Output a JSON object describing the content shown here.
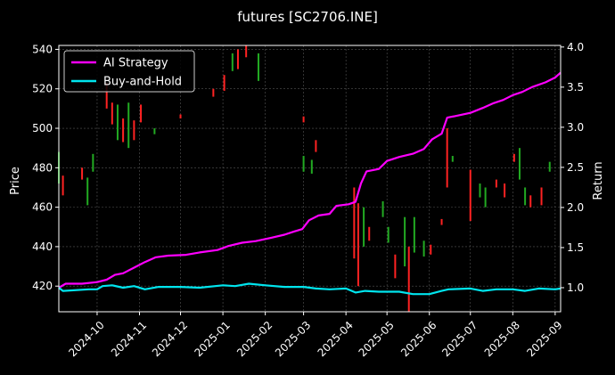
{
  "chart_data": {
    "type": "line",
    "title": "futures [SC2706.INE]",
    "xlabel": "",
    "ylabel": "Price",
    "y2label": "Return",
    "x_range": [
      "2024-09-03",
      "2025-09-05"
    ],
    "ylim": [
      407,
      542
    ],
    "y2lim": [
      0.7,
      4.02
    ],
    "yticks": [
      420,
      440,
      460,
      480,
      500,
      520,
      540
    ],
    "y2ticks": [
      "1.0",
      "1.5",
      "2.0",
      "2.5",
      "3.0",
      "3.5",
      "4.0"
    ],
    "xticks": [
      "2024-10",
      "2024-11",
      "2024-12",
      "2025-01",
      "2025-02",
      "2025-03",
      "2025-04",
      "2025-05",
      "2025-06",
      "2025-07",
      "2025-08",
      "2025-09"
    ],
    "grid": true,
    "legend_position": "top-left",
    "colors": {
      "up": "#22aa22",
      "down": "#ff2222",
      "strategy": "#ff00ff",
      "buyhold": "#00e5ee",
      "grid": "#555555"
    },
    "series": [
      {
        "name": "AI Strategy",
        "axis": "right",
        "points": [
          [
            "2024-09-03",
            1.0
          ],
          [
            "2024-09-08",
            1.05
          ],
          [
            "2024-09-20",
            1.05
          ],
          [
            "2024-10-01",
            1.07
          ],
          [
            "2024-10-08",
            1.1
          ],
          [
            "2024-10-14",
            1.16
          ],
          [
            "2024-10-20",
            1.18
          ],
          [
            "2024-10-28",
            1.25
          ],
          [
            "2024-11-05",
            1.32
          ],
          [
            "2024-11-13",
            1.38
          ],
          [
            "2024-11-22",
            1.4
          ],
          [
            "2024-12-05",
            1.41
          ],
          [
            "2024-12-15",
            1.44
          ],
          [
            "2024-12-28",
            1.47
          ],
          [
            "2025-01-05",
            1.52
          ],
          [
            "2025-01-15",
            1.56
          ],
          [
            "2025-01-25",
            1.58
          ],
          [
            "2025-02-05",
            1.62
          ],
          [
            "2025-02-15",
            1.66
          ],
          [
            "2025-02-22",
            1.7
          ],
          [
            "2025-02-28",
            1.73
          ],
          [
            "2025-03-05",
            1.84
          ],
          [
            "2025-03-12",
            1.9
          ],
          [
            "2025-03-20",
            1.92
          ],
          [
            "2025-03-25",
            2.02
          ],
          [
            "2025-04-03",
            2.04
          ],
          [
            "2025-04-08",
            2.07
          ],
          [
            "2025-04-12",
            2.3
          ],
          [
            "2025-04-16",
            2.45
          ],
          [
            "2025-04-25",
            2.48
          ],
          [
            "2025-05-01",
            2.58
          ],
          [
            "2025-05-10",
            2.63
          ],
          [
            "2025-05-20",
            2.67
          ],
          [
            "2025-05-28",
            2.73
          ],
          [
            "2025-06-03",
            2.85
          ],
          [
            "2025-06-10",
            2.92
          ],
          [
            "2025-06-14",
            3.12
          ],
          [
            "2025-06-20",
            3.14
          ],
          [
            "2025-07-01",
            3.18
          ],
          [
            "2025-07-10",
            3.24
          ],
          [
            "2025-07-18",
            3.3
          ],
          [
            "2025-07-25",
            3.34
          ],
          [
            "2025-08-01",
            3.4
          ],
          [
            "2025-08-08",
            3.44
          ],
          [
            "2025-08-15",
            3.5
          ],
          [
            "2025-08-25",
            3.56
          ],
          [
            "2025-09-01",
            3.62
          ],
          [
            "2025-09-05",
            3.68
          ]
        ]
      },
      {
        "name": "Buy-and-Hold",
        "axis": "right",
        "points": [
          [
            "2024-09-03",
            1.0
          ],
          [
            "2024-09-06",
            0.96
          ],
          [
            "2024-09-25",
            0.98
          ],
          [
            "2024-10-01",
            0.98
          ],
          [
            "2024-10-05",
            1.02
          ],
          [
            "2024-10-12",
            1.03
          ],
          [
            "2024-10-20",
            1.0
          ],
          [
            "2024-10-28",
            1.02
          ],
          [
            "2024-11-05",
            0.98
          ],
          [
            "2024-11-15",
            1.01
          ],
          [
            "2024-12-01",
            1.01
          ],
          [
            "2024-12-15",
            1.0
          ],
          [
            "2025-01-01",
            1.03
          ],
          [
            "2025-01-10",
            1.02
          ],
          [
            "2025-01-20",
            1.05
          ],
          [
            "2025-02-01",
            1.03
          ],
          [
            "2025-02-15",
            1.01
          ],
          [
            "2025-03-01",
            1.01
          ],
          [
            "2025-03-10",
            0.99
          ],
          [
            "2025-03-20",
            0.98
          ],
          [
            "2025-04-01",
            0.99
          ],
          [
            "2025-04-08",
            0.94
          ],
          [
            "2025-04-15",
            0.96
          ],
          [
            "2025-04-25",
            0.95
          ],
          [
            "2025-05-10",
            0.95
          ],
          [
            "2025-05-20",
            0.92
          ],
          [
            "2025-06-01",
            0.92
          ],
          [
            "2025-06-10",
            0.96
          ],
          [
            "2025-06-15",
            0.98
          ],
          [
            "2025-07-01",
            0.99
          ],
          [
            "2025-07-10",
            0.96
          ],
          [
            "2025-07-20",
            0.98
          ],
          [
            "2025-08-01",
            0.98
          ],
          [
            "2025-08-10",
            0.96
          ],
          [
            "2025-08-20",
            0.99
          ],
          [
            "2025-09-01",
            0.98
          ],
          [
            "2025-09-05",
            0.99
          ]
        ]
      }
    ],
    "candles": [
      {
        "date": "2024-09-03",
        "low": 472,
        "high": 488,
        "dir": "up"
      },
      {
        "date": "2024-09-06",
        "low": 466,
        "high": 476,
        "dir": "down"
      },
      {
        "date": "2024-09-20",
        "low": 474,
        "high": 480,
        "dir": "down"
      },
      {
        "date": "2024-09-24",
        "low": 461,
        "high": 475,
        "dir": "up"
      },
      {
        "date": "2024-09-28",
        "low": 478,
        "high": 487,
        "dir": "up"
      },
      {
        "date": "2024-10-08",
        "low": 510,
        "high": 523,
        "dir": "down"
      },
      {
        "date": "2024-10-12",
        "low": 502,
        "high": 513,
        "dir": "down"
      },
      {
        "date": "2024-10-16",
        "low": 494,
        "high": 512,
        "dir": "up"
      },
      {
        "date": "2024-10-20",
        "low": 493,
        "high": 505,
        "dir": "down"
      },
      {
        "date": "2024-10-24",
        "low": 490,
        "high": 513,
        "dir": "up"
      },
      {
        "date": "2024-10-28",
        "low": 494,
        "high": 504,
        "dir": "down"
      },
      {
        "date": "2024-11-02",
        "low": 503,
        "high": 512,
        "dir": "down"
      },
      {
        "date": "2024-11-12",
        "low": 497,
        "high": 500,
        "dir": "up"
      },
      {
        "date": "2024-12-01",
        "low": 505,
        "high": 507,
        "dir": "down"
      },
      {
        "date": "2024-12-25",
        "low": 516,
        "high": 520,
        "dir": "down"
      },
      {
        "date": "2025-01-02",
        "low": 519,
        "high": 527,
        "dir": "down"
      },
      {
        "date": "2025-01-08",
        "low": 529,
        "high": 538,
        "dir": "up"
      },
      {
        "date": "2025-01-12",
        "low": 530,
        "high": 540,
        "dir": "down"
      },
      {
        "date": "2025-01-18",
        "low": 536,
        "high": 542,
        "dir": "down"
      },
      {
        "date": "2025-01-27",
        "low": 524,
        "high": 538,
        "dir": "up"
      },
      {
        "date": "2025-03-01",
        "low": 503,
        "high": 506,
        "dir": "down"
      },
      {
        "date": "2025-03-01",
        "low": 478,
        "high": 486,
        "dir": "up"
      },
      {
        "date": "2025-03-07",
        "low": 477,
        "high": 484,
        "dir": "up"
      },
      {
        "date": "2025-03-10",
        "low": 488,
        "high": 494,
        "dir": "down"
      },
      {
        "date": "2025-04-07",
        "low": 434,
        "high": 470,
        "dir": "down"
      },
      {
        "date": "2025-04-10",
        "low": 420,
        "high": 462,
        "dir": "down"
      },
      {
        "date": "2025-04-14",
        "low": 440,
        "high": 460,
        "dir": "up"
      },
      {
        "date": "2025-04-18",
        "low": 443,
        "high": 450,
        "dir": "down"
      },
      {
        "date": "2025-04-28",
        "low": 455,
        "high": 463,
        "dir": "up"
      },
      {
        "date": "2025-05-02",
        "low": 442,
        "high": 450,
        "dir": "up"
      },
      {
        "date": "2025-05-07",
        "low": 424,
        "high": 436,
        "dir": "down"
      },
      {
        "date": "2025-05-14",
        "low": 430,
        "high": 455,
        "dir": "up"
      },
      {
        "date": "2025-05-17",
        "low": 407,
        "high": 440,
        "dir": "down"
      },
      {
        "date": "2025-05-21",
        "low": 437,
        "high": 455,
        "dir": "up"
      },
      {
        "date": "2025-05-28",
        "low": 435,
        "high": 443,
        "dir": "up"
      },
      {
        "date": "2025-06-02",
        "low": 436,
        "high": 441,
        "dir": "down"
      },
      {
        "date": "2025-06-10",
        "low": 451,
        "high": 454,
        "dir": "down"
      },
      {
        "date": "2025-06-14",
        "low": 470,
        "high": 500,
        "dir": "down"
      },
      {
        "date": "2025-06-18",
        "low": 483,
        "high": 486,
        "dir": "up"
      },
      {
        "date": "2025-07-01",
        "low": 453,
        "high": 479,
        "dir": "down"
      },
      {
        "date": "2025-07-08",
        "low": 465,
        "high": 472,
        "dir": "up"
      },
      {
        "date": "2025-07-12",
        "low": 460,
        "high": 470,
        "dir": "up"
      },
      {
        "date": "2025-07-20",
        "low": 470,
        "high": 474,
        "dir": "down"
      },
      {
        "date": "2025-07-26",
        "low": 465,
        "high": 472,
        "dir": "down"
      },
      {
        "date": "2025-08-02",
        "low": 483,
        "high": 487,
        "dir": "down"
      },
      {
        "date": "2025-08-06",
        "low": 474,
        "high": 490,
        "dir": "up"
      },
      {
        "date": "2025-08-10",
        "low": 461,
        "high": 470,
        "dir": "up"
      },
      {
        "date": "2025-08-14",
        "low": 460,
        "high": 466,
        "dir": "down"
      },
      {
        "date": "2025-08-22",
        "low": 461,
        "high": 470,
        "dir": "down"
      },
      {
        "date": "2025-08-28",
        "low": 478,
        "high": 483,
        "dir": "up"
      }
    ]
  }
}
